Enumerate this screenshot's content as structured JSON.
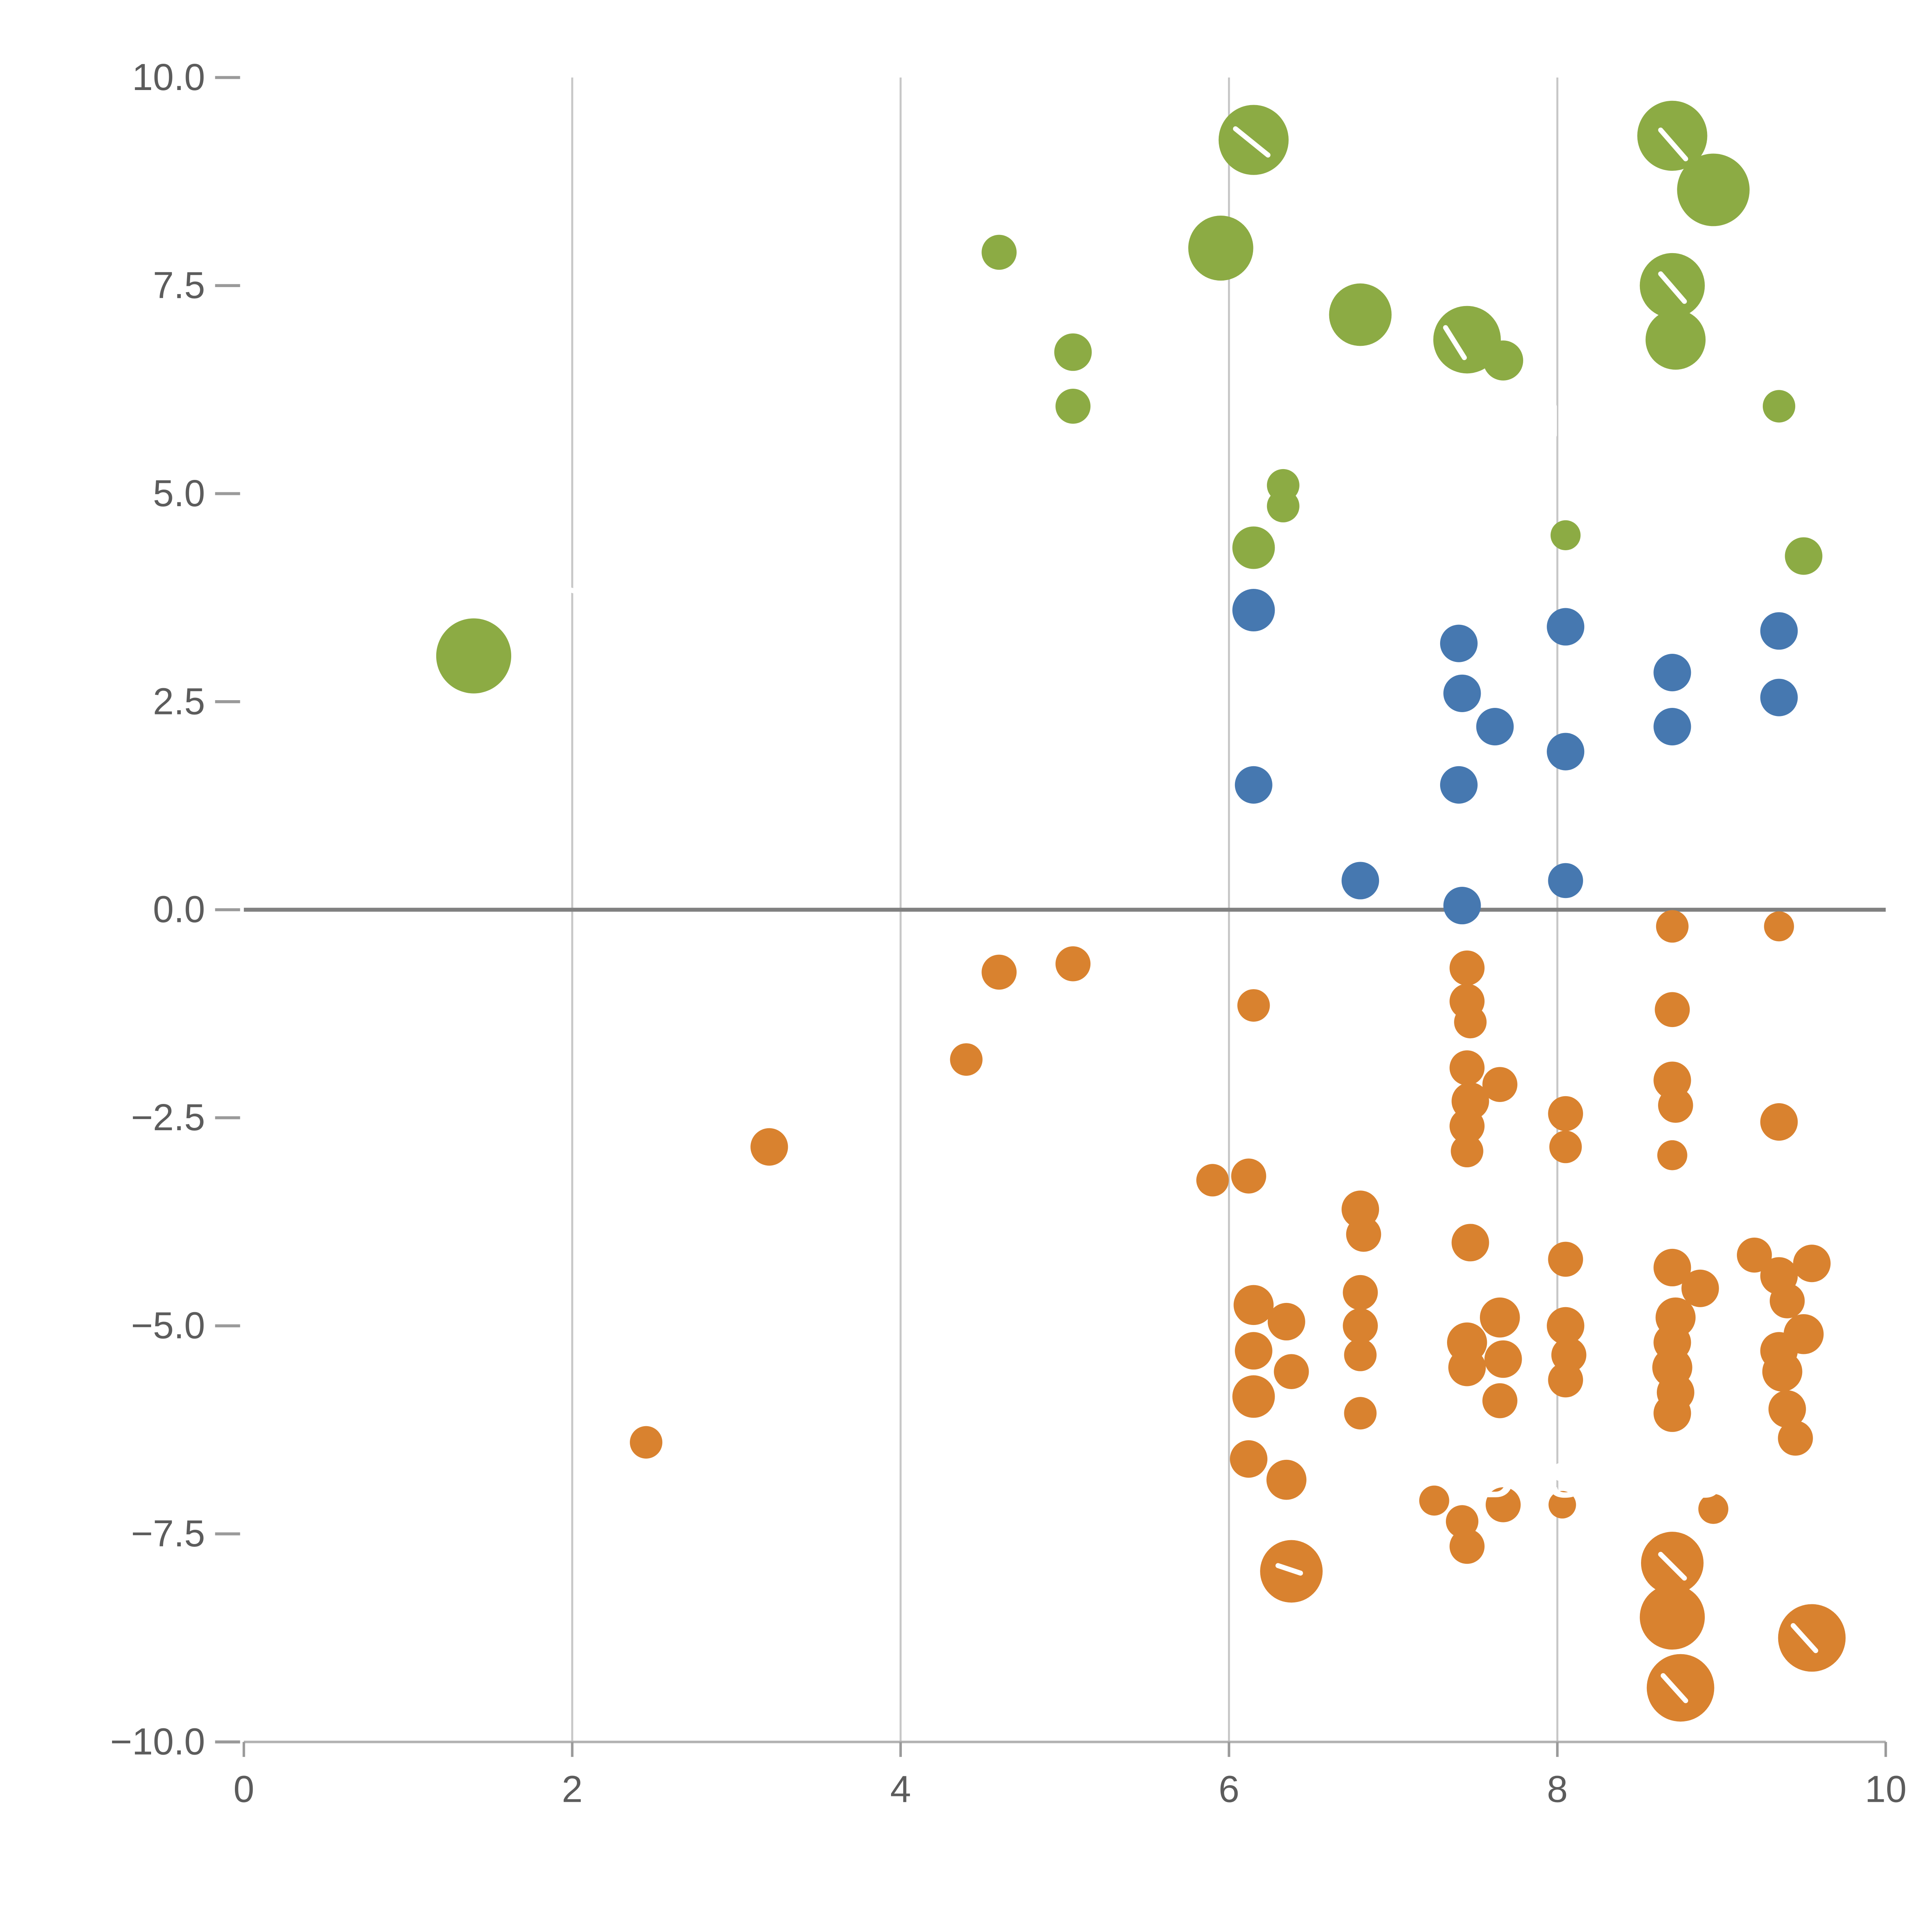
{
  "page": {
    "background": "#ffffff"
  },
  "style": {
    "grid_color": "#c7c7c7",
    "zero_line_color": "#808080",
    "axis_line_color": "#b3b3b3",
    "tick_color": "#9a9a9a",
    "tick_label_color": "#5c5c5c",
    "watermark_color": "#ffffff"
  },
  "chart_data": {
    "type": "scatter",
    "subtype": "bubble",
    "title": "",
    "xlabel": "",
    "ylabel": "",
    "xlim": [
      0,
      10
    ],
    "ylim": [
      -10,
      10
    ],
    "grid": "vertical-only",
    "grid_x_values": [
      2,
      4,
      6,
      8
    ],
    "zero_line": true,
    "legend_position": "none",
    "x_ticks": [
      0,
      2,
      4,
      6,
      8,
      10
    ],
    "x_tick_labels": [
      "0",
      "2",
      "4",
      "6",
      "8",
      "10"
    ],
    "y_ticks": [
      10.0,
      7.5,
      5.0,
      2.5,
      0.0,
      -2.5,
      -5.0,
      -7.5,
      -10.0
    ],
    "y_tick_labels": [
      "10.0",
      "7.5",
      "5.0",
      "2.5",
      "0.0",
      "−2.5",
      "−5.0",
      "−7.5",
      "−10.0"
    ],
    "watermark": {
      "text": "DISCOUNT",
      "x": 7.52,
      "y": -7.06,
      "color": "#ffffff",
      "font_size": 40,
      "letter_spacing": 8
    },
    "white_marks": [
      [
        988,
        103,
        1014,
        124
      ],
      [
        1328,
        104,
        1348,
        127
      ],
      [
        1328,
        219,
        1347,
        241
      ],
      [
        1156,
        262,
        1171,
        286
      ],
      [
        1240,
        62,
        1240,
        97
      ],
      [
        1243,
        325,
        1243,
        348
      ],
      [
        450,
        470,
        464,
        474
      ],
      [
        1022,
        1252,
        1040,
        1258
      ],
      [
        1328,
        1243,
        1347,
        1262
      ],
      [
        1330,
        1340,
        1348,
        1360
      ],
      [
        1434,
        1300,
        1452,
        1320
      ]
    ],
    "series": [
      {
        "name": "green",
        "color": "#8CAB44",
        "points": [
          {
            "x": 1.4,
            "y": 3.05,
            "r": 30
          },
          {
            "x": 4.6,
            "y": 7.9,
            "r": 14
          },
          {
            "x": 5.05,
            "y": 6.7,
            "r": 15
          },
          {
            "x": 5.05,
            "y": 6.05,
            "r": 14
          },
          {
            "x": 5.95,
            "y": 7.95,
            "r": 26
          },
          {
            "x": 6.15,
            "y": 9.25,
            "r": 28
          },
          {
            "x": 6.15,
            "y": 4.35,
            "r": 17
          },
          {
            "x": 6.33,
            "y": 5.1,
            "r": 13
          },
          {
            "x": 6.33,
            "y": 4.85,
            "r": 13
          },
          {
            "x": 6.8,
            "y": 7.15,
            "r": 25
          },
          {
            "x": 7.45,
            "y": 6.85,
            "r": 27
          },
          {
            "x": 7.67,
            "y": 6.6,
            "r": 16
          },
          {
            "x": 8.05,
            "y": 4.5,
            "r": 12
          },
          {
            "x": 8.7,
            "y": 9.3,
            "r": 28
          },
          {
            "x": 8.95,
            "y": 8.65,
            "r": 29
          },
          {
            "x": 8.7,
            "y": 7.5,
            "r": 26
          },
          {
            "x": 8.72,
            "y": 6.85,
            "r": 24
          },
          {
            "x": 9.35,
            "y": 6.05,
            "r": 13
          },
          {
            "x": 9.5,
            "y": 4.25,
            "r": 15
          }
        ]
      },
      {
        "name": "blue",
        "color": "#4678B0",
        "points": [
          {
            "x": 6.15,
            "y": 3.6,
            "r": 17
          },
          {
            "x": 6.15,
            "y": 1.5,
            "r": 15
          },
          {
            "x": 6.8,
            "y": 0.35,
            "r": 15
          },
          {
            "x": 7.4,
            "y": 3.2,
            "r": 15
          },
          {
            "x": 7.42,
            "y": 2.6,
            "r": 15
          },
          {
            "x": 7.62,
            "y": 2.2,
            "r": 15
          },
          {
            "x": 7.4,
            "y": 1.5,
            "r": 15
          },
          {
            "x": 7.42,
            "y": 0.05,
            "r": 15
          },
          {
            "x": 8.05,
            "y": 3.4,
            "r": 15
          },
          {
            "x": 8.05,
            "y": 1.9,
            "r": 15
          },
          {
            "x": 8.05,
            "y": 0.35,
            "r": 14
          },
          {
            "x": 8.7,
            "y": 2.85,
            "r": 15
          },
          {
            "x": 8.7,
            "y": 2.2,
            "r": 15
          },
          {
            "x": 9.35,
            "y": 3.35,
            "r": 15
          },
          {
            "x": 9.35,
            "y": 2.55,
            "r": 15
          }
        ]
      },
      {
        "name": "orange",
        "color": "#D9822F",
        "points": [
          {
            "x": 2.45,
            "y": -6.4,
            "r": 13
          },
          {
            "x": 3.2,
            "y": -2.85,
            "r": 15
          },
          {
            "x": 4.4,
            "y": -1.8,
            "r": 13
          },
          {
            "x": 4.6,
            "y": -0.75,
            "r": 14
          },
          {
            "x": 5.05,
            "y": -0.65,
            "r": 14
          },
          {
            "x": 5.9,
            "y": -3.25,
            "r": 13
          },
          {
            "x": 6.12,
            "y": -3.2,
            "r": 14
          },
          {
            "x": 6.15,
            "y": -1.15,
            "r": 13
          },
          {
            "x": 6.15,
            "y": -4.75,
            "r": 16
          },
          {
            "x": 6.15,
            "y": -5.3,
            "r": 15
          },
          {
            "x": 6.15,
            "y": -5.85,
            "r": 17
          },
          {
            "x": 6.12,
            "y": -6.6,
            "r": 15
          },
          {
            "x": 6.35,
            "y": -4.95,
            "r": 15
          },
          {
            "x": 6.38,
            "y": -5.55,
            "r": 14
          },
          {
            "x": 6.35,
            "y": -6.85,
            "r": 16
          },
          {
            "x": 6.38,
            "y": -7.95,
            "r": 25
          },
          {
            "x": 6.8,
            "y": -3.6,
            "r": 15
          },
          {
            "x": 6.82,
            "y": -3.9,
            "r": 14
          },
          {
            "x": 6.8,
            "y": -4.6,
            "r": 14
          },
          {
            "x": 6.8,
            "y": -5.0,
            "r": 14
          },
          {
            "x": 6.8,
            "y": -5.35,
            "r": 13
          },
          {
            "x": 6.8,
            "y": -6.05,
            "r": 13
          },
          {
            "x": 7.25,
            "y": -7.1,
            "r": 12
          },
          {
            "x": 7.45,
            "y": -0.7,
            "r": 14
          },
          {
            "x": 7.45,
            "y": -1.1,
            "r": 14
          },
          {
            "x": 7.47,
            "y": -1.35,
            "r": 13
          },
          {
            "x": 7.45,
            "y": -1.9,
            "r": 14
          },
          {
            "x": 7.47,
            "y": -2.3,
            "r": 15
          },
          {
            "x": 7.45,
            "y": -2.6,
            "r": 14
          },
          {
            "x": 7.45,
            "y": -2.9,
            "r": 13
          },
          {
            "x": 7.47,
            "y": -4.0,
            "r": 15
          },
          {
            "x": 7.45,
            "y": -5.2,
            "r": 16
          },
          {
            "x": 7.45,
            "y": -5.5,
            "r": 15
          },
          {
            "x": 7.42,
            "y": -7.35,
            "r": 13
          },
          {
            "x": 7.45,
            "y": -7.65,
            "r": 14
          },
          {
            "x": 7.65,
            "y": -2.1,
            "r": 14
          },
          {
            "x": 7.65,
            "y": -4.9,
            "r": 16
          },
          {
            "x": 7.67,
            "y": -5.4,
            "r": 15
          },
          {
            "x": 7.65,
            "y": -5.9,
            "r": 14
          },
          {
            "x": 7.67,
            "y": -7.15,
            "r": 14
          },
          {
            "x": 8.05,
            "y": -2.45,
            "r": 14
          },
          {
            "x": 8.05,
            "y": -2.85,
            "r": 13
          },
          {
            "x": 8.05,
            "y": -4.2,
            "r": 14
          },
          {
            "x": 8.05,
            "y": -5.0,
            "r": 15
          },
          {
            "x": 8.07,
            "y": -5.35,
            "r": 14
          },
          {
            "x": 8.05,
            "y": -5.65,
            "r": 14
          },
          {
            "x": 8.03,
            "y": -7.15,
            "r": 11
          },
          {
            "x": 8.7,
            "y": -0.2,
            "r": 13
          },
          {
            "x": 8.7,
            "y": -1.2,
            "r": 14
          },
          {
            "x": 8.7,
            "y": -2.05,
            "r": 15
          },
          {
            "x": 8.72,
            "y": -2.35,
            "r": 14
          },
          {
            "x": 8.7,
            "y": -2.95,
            "r": 12
          },
          {
            "x": 8.7,
            "y": -4.3,
            "r": 15
          },
          {
            "x": 8.72,
            "y": -4.9,
            "r": 16
          },
          {
            "x": 8.7,
            "y": -5.2,
            "r": 15
          },
          {
            "x": 8.7,
            "y": -5.5,
            "r": 16
          },
          {
            "x": 8.72,
            "y": -5.8,
            "r": 15
          },
          {
            "x": 8.7,
            "y": -6.05,
            "r": 15
          },
          {
            "x": 8.87,
            "y": -4.55,
            "r": 15
          },
          {
            "x": 8.95,
            "y": -7.2,
            "r": 12
          },
          {
            "x": 8.7,
            "y": -7.85,
            "r": 25
          },
          {
            "x": 8.7,
            "y": -8.5,
            "r": 26
          },
          {
            "x": 8.75,
            "y": -9.35,
            "r": 27
          },
          {
            "x": 9.2,
            "y": -4.15,
            "r": 14
          },
          {
            "x": 9.35,
            "y": -0.2,
            "r": 12
          },
          {
            "x": 9.35,
            "y": -2.55,
            "r": 15
          },
          {
            "x": 9.35,
            "y": -4.4,
            "r": 15
          },
          {
            "x": 9.4,
            "y": -4.7,
            "r": 14
          },
          {
            "x": 9.55,
            "y": -4.25,
            "r": 15
          },
          {
            "x": 9.5,
            "y": -5.1,
            "r": 16
          },
          {
            "x": 9.35,
            "y": -5.3,
            "r": 15
          },
          {
            "x": 9.37,
            "y": -5.55,
            "r": 16
          },
          {
            "x": 9.4,
            "y": -6.0,
            "r": 15
          },
          {
            "x": 9.45,
            "y": -6.35,
            "r": 14
          },
          {
            "x": 9.55,
            "y": -8.75,
            "r": 27
          }
        ]
      }
    ]
  }
}
